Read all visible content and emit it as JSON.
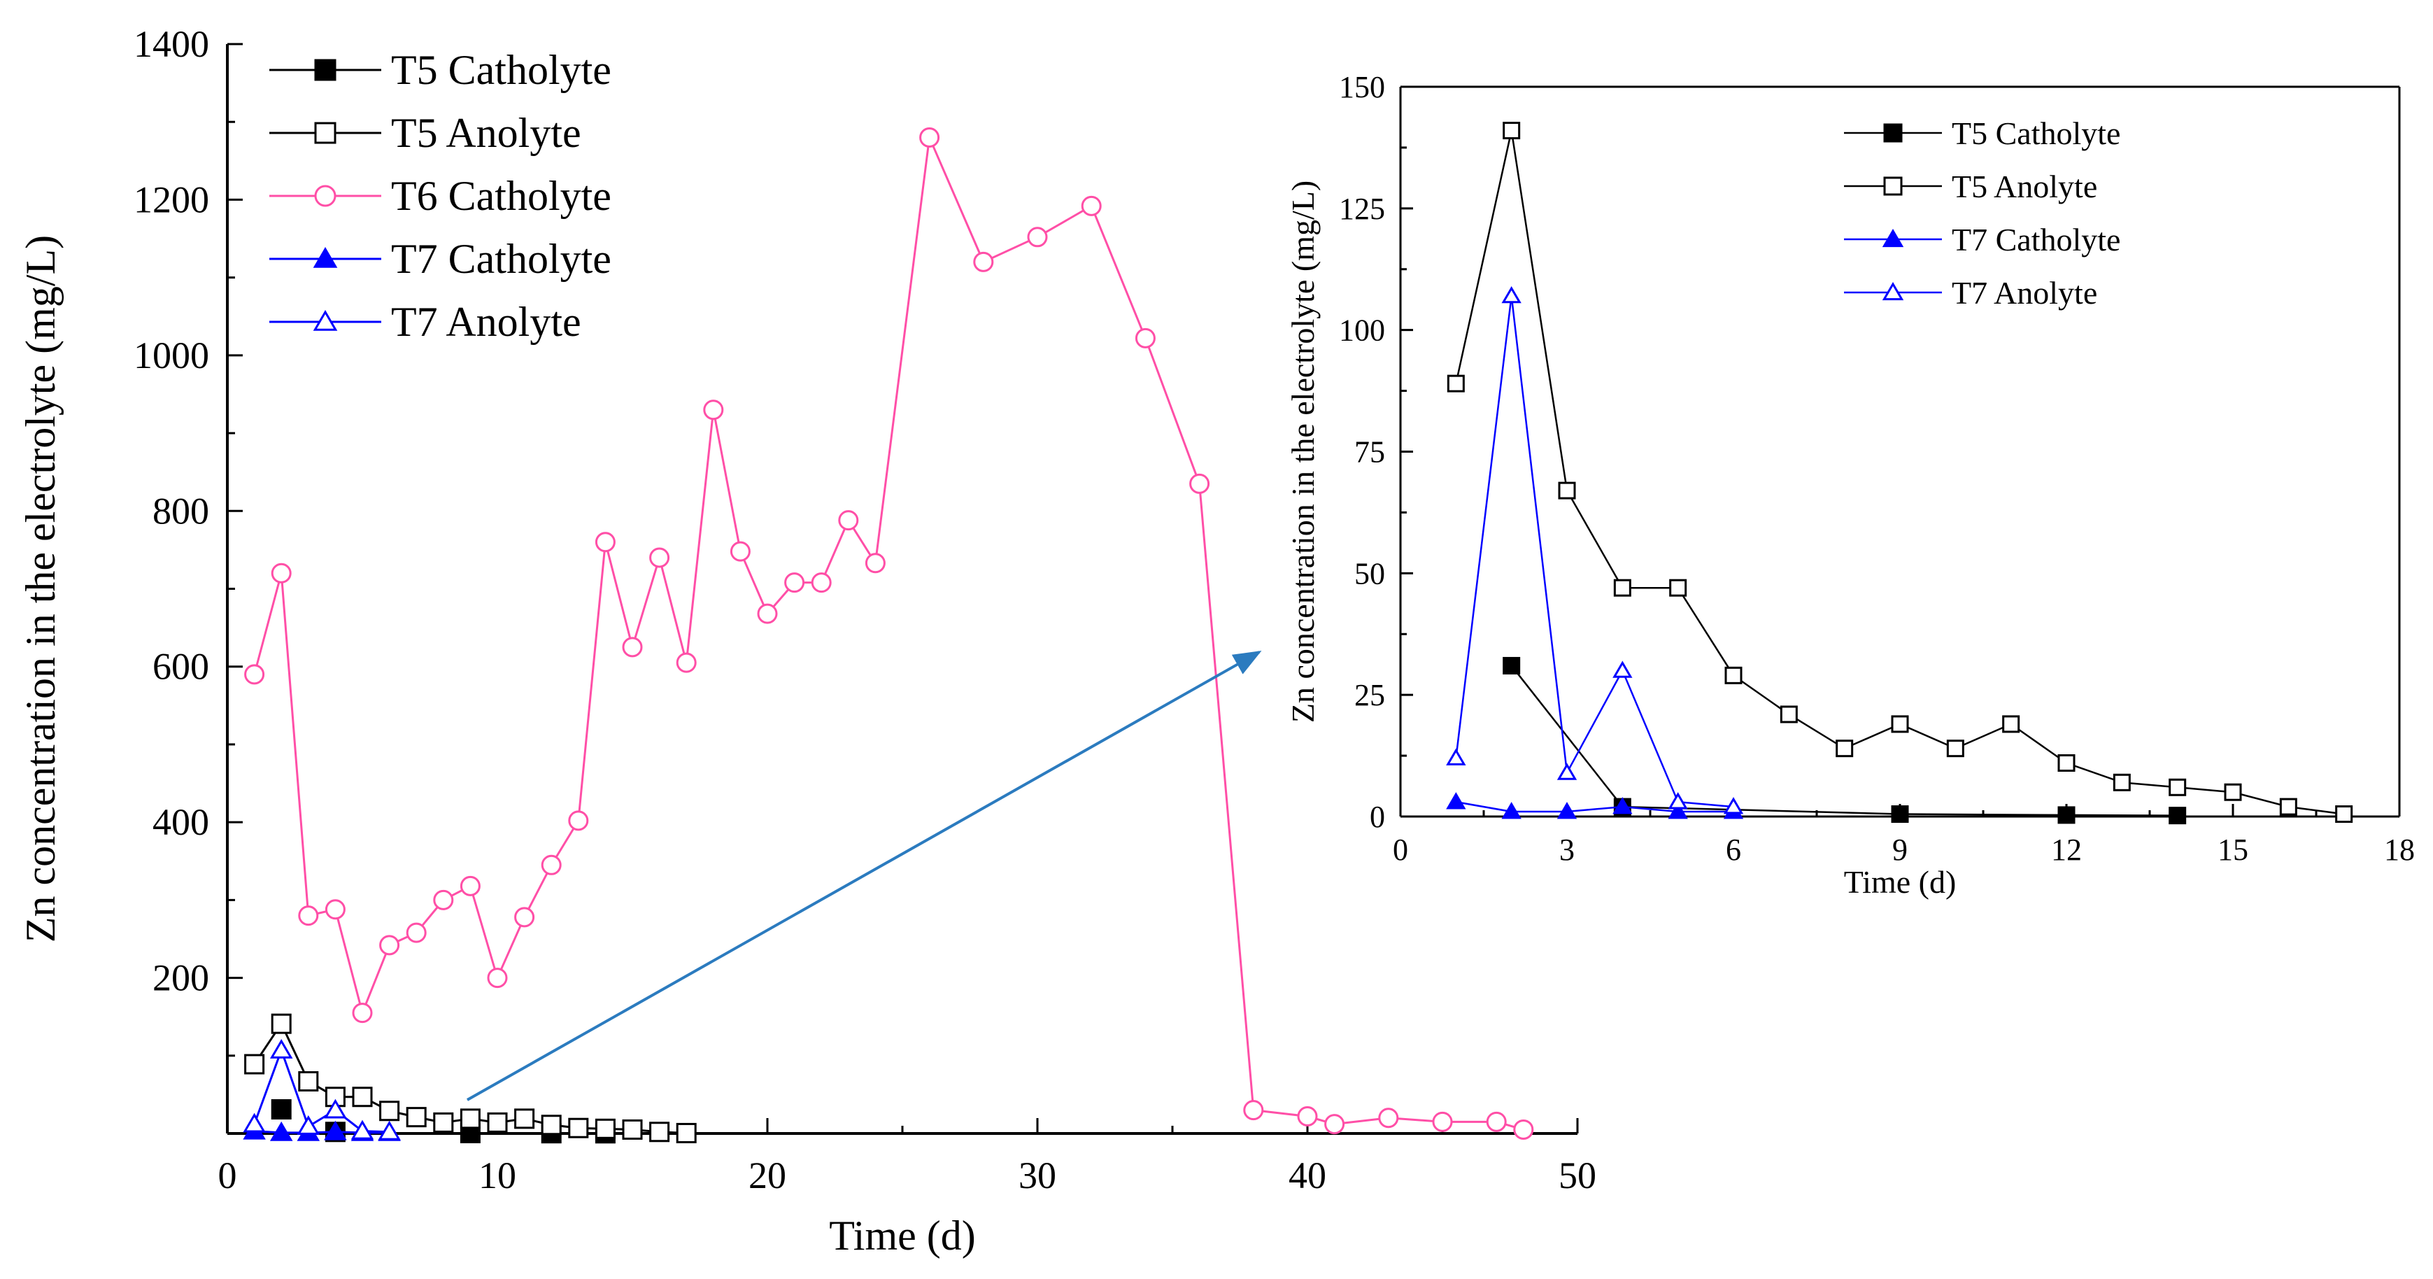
{
  "chart_data": [
    {
      "type": "line",
      "id": "main",
      "title": "",
      "xlabel": "Time (d)",
      "ylabel": "Zn concentration in the electrolyte (mg/L)",
      "xlim": [
        0,
        50
      ],
      "ylim": [
        0,
        1400
      ],
      "xticks": [
        0,
        10,
        20,
        30,
        40,
        50
      ],
      "yticks": [
        200,
        400,
        600,
        800,
        1000,
        1200,
        1400
      ],
      "xtick_labels": [
        "0",
        "10",
        "20",
        "30",
        "40",
        "50"
      ],
      "ytick_labels": [
        "200",
        "400",
        "600",
        "800",
        "1000",
        "1200",
        "1400"
      ],
      "legend_position": "top-left",
      "series": [
        {
          "name": "T5 Catholyte",
          "color": "#000000",
          "marker": "square-filled",
          "line": false,
          "x": [
            2,
            4,
            9,
            12,
            14
          ],
          "y": [
            31,
            2,
            0.5,
            0.3,
            0.2
          ]
        },
        {
          "name": "T5 Anolyte",
          "color": "#000000",
          "marker": "square-open",
          "line": true,
          "x": [
            1,
            2,
            3,
            4,
            5,
            6,
            7,
            8,
            9,
            10,
            11,
            12,
            13,
            14,
            15,
            16,
            17
          ],
          "y": [
            89,
            141,
            67,
            47,
            47,
            29,
            21,
            14,
            19,
            14,
            19,
            11,
            7,
            6,
            5,
            2,
            0.5
          ]
        },
        {
          "name": "T6 Catholyte",
          "color": "#ff4fa7",
          "marker": "circle-open",
          "line": true,
          "x": [
            1,
            2,
            3,
            4,
            5,
            6,
            7,
            8,
            9,
            10,
            11,
            12,
            13,
            14,
            15,
            16,
            17,
            18,
            19,
            20,
            21,
            22,
            23,
            24,
            26,
            28,
            30,
            32,
            34,
            36,
            38,
            40,
            41,
            43,
            45,
            47,
            48
          ],
          "y": [
            590,
            720,
            280,
            288,
            155,
            242,
            258,
            300,
            318,
            200,
            278,
            345,
            402,
            760,
            625,
            740,
            605,
            930,
            748,
            668,
            708,
            708,
            788,
            733,
            1280,
            1120,
            1152,
            1192,
            1022,
            835,
            30,
            22,
            12,
            20,
            15,
            15,
            5
          ]
        },
        {
          "name": "T7 Catholyte",
          "color": "#0000ff",
          "marker": "triangle-filled",
          "line": true,
          "x": [
            1,
            2,
            3,
            4,
            5,
            6
          ],
          "y": [
            3,
            1,
            1,
            2,
            1,
            1
          ]
        },
        {
          "name": "T7 Anolyte",
          "color": "#0000ff",
          "marker": "triangle-open",
          "line": true,
          "x": [
            1,
            2,
            3,
            4,
            5,
            6
          ],
          "y": [
            12,
            107,
            9,
            30,
            3,
            2
          ]
        }
      ]
    },
    {
      "type": "line",
      "id": "inset",
      "title": "",
      "xlabel": "Time (d)",
      "ylabel": "Zn concentration in the electrolyte (mg/L)",
      "xlim": [
        0,
        18
      ],
      "ylim": [
        0,
        150
      ],
      "xticks": [
        0,
        3,
        6,
        9,
        12,
        15,
        18
      ],
      "yticks": [
        0,
        25,
        50,
        75,
        100,
        125,
        150
      ],
      "xtick_labels": [
        "0",
        "3",
        "6",
        "9",
        "12",
        "15",
        "18"
      ],
      "ytick_labels": [
        "0",
        "25",
        "50",
        "75",
        "100",
        "125",
        "150"
      ],
      "legend_position": "top-right",
      "series": [
        {
          "name": "T5 Catholyte",
          "color": "#000000",
          "marker": "square-filled",
          "line": true,
          "x": [
            2,
            4,
            9,
            12,
            14
          ],
          "y": [
            31,
            2,
            0.5,
            0.3,
            0.2
          ]
        },
        {
          "name": "T5 Anolyte",
          "color": "#000000",
          "marker": "square-open",
          "line": true,
          "x": [
            1,
            2,
            3,
            4,
            5,
            6,
            7,
            8,
            9,
            10,
            11,
            12,
            13,
            14,
            15,
            16,
            17
          ],
          "y": [
            89,
            141,
            67,
            47,
            47,
            29,
            21,
            14,
            19,
            14,
            19,
            11,
            7,
            6,
            5,
            2,
            0.5
          ]
        },
        {
          "name": "T7 Catholyte",
          "color": "#0000ff",
          "marker": "triangle-filled",
          "line": true,
          "x": [
            1,
            2,
            3,
            4,
            5,
            6
          ],
          "y": [
            3,
            1,
            1,
            2,
            1,
            1
          ]
        },
        {
          "name": "T7 Anolyte",
          "color": "#0000ff",
          "marker": "triangle-open",
          "line": true,
          "x": [
            1,
            2,
            3,
            4,
            5,
            6
          ],
          "y": [
            12,
            107,
            9,
            30,
            3,
            2
          ]
        }
      ]
    }
  ],
  "annotation": {
    "type": "arrow",
    "color": "#2b7bbf",
    "from": "main-plot",
    "to": "inset-plot"
  }
}
